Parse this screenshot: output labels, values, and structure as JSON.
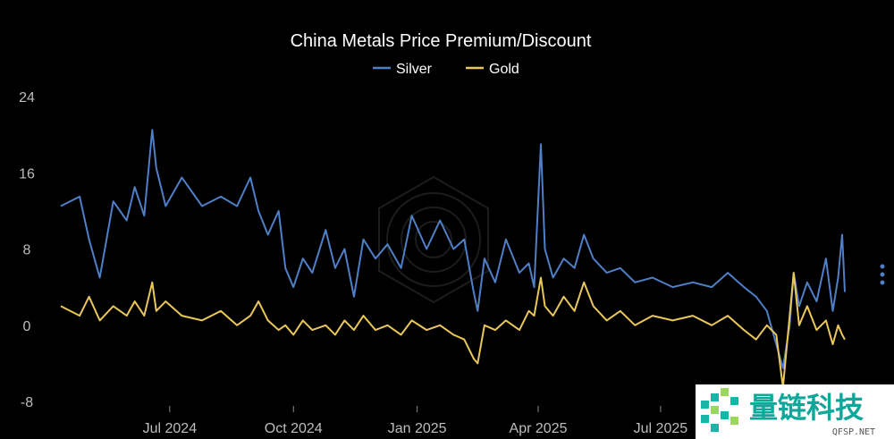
{
  "chart_data": {
    "type": "line",
    "title": "China Metals Price Premium/Discount",
    "ylim": [
      -8,
      24
    ],
    "yticks": [
      -8,
      0,
      8,
      16,
      24
    ],
    "grid": false,
    "legend_position": "top-center",
    "x_ticks": [
      {
        "date": "2024-07-01",
        "label": "Jul 2024"
      },
      {
        "date": "2024-10-01",
        "label": "Oct 2024"
      },
      {
        "date": "2025-01-01",
        "label": "Jan 2025"
      },
      {
        "date": "2025-04-01",
        "label": "Apr 2025"
      },
      {
        "date": "2025-07-01",
        "label": "Jul 2025"
      }
    ],
    "xlim": [
      "2024-04-11",
      "2025-11-15"
    ],
    "series": [
      {
        "name": "Silver",
        "color": "#4f7fc6",
        "points": [
          [
            "2024-04-11",
            12.5
          ],
          [
            "2024-04-25",
            13.5
          ],
          [
            "2024-05-02",
            9.0
          ],
          [
            "2024-05-10",
            5.0
          ],
          [
            "2024-05-20",
            13.0
          ],
          [
            "2024-05-30",
            11.0
          ],
          [
            "2024-06-05",
            14.5
          ],
          [
            "2024-06-12",
            11.5
          ],
          [
            "2024-06-18",
            20.5
          ],
          [
            "2024-06-21",
            16.5
          ],
          [
            "2024-06-28",
            12.5
          ],
          [
            "2024-07-10",
            15.5
          ],
          [
            "2024-07-25",
            12.5
          ],
          [
            "2024-08-08",
            13.5
          ],
          [
            "2024-08-20",
            12.5
          ],
          [
            "2024-08-30",
            15.5
          ],
          [
            "2024-09-05",
            12.0
          ],
          [
            "2024-09-12",
            9.5
          ],
          [
            "2024-09-20",
            12.0
          ],
          [
            "2024-09-25",
            6.0
          ],
          [
            "2024-10-01",
            4.0
          ],
          [
            "2024-10-08",
            7.0
          ],
          [
            "2024-10-15",
            5.5
          ],
          [
            "2024-10-25",
            10.0
          ],
          [
            "2024-11-01",
            6.0
          ],
          [
            "2024-11-08",
            8.0
          ],
          [
            "2024-11-15",
            3.0
          ],
          [
            "2024-11-22",
            9.0
          ],
          [
            "2024-12-01",
            7.0
          ],
          [
            "2024-12-10",
            8.5
          ],
          [
            "2024-12-20",
            6.0
          ],
          [
            "2024-12-28",
            11.5
          ],
          [
            "2025-01-08",
            8.0
          ],
          [
            "2025-01-18",
            11.0
          ],
          [
            "2025-01-28",
            8.0
          ],
          [
            "2025-02-05",
            9.0
          ],
          [
            "2025-02-12",
            3.5
          ],
          [
            "2025-02-15",
            1.5
          ],
          [
            "2025-02-20",
            7.0
          ],
          [
            "2025-02-28",
            4.5
          ],
          [
            "2025-03-08",
            9.0
          ],
          [
            "2025-03-18",
            5.5
          ],
          [
            "2025-03-25",
            6.5
          ],
          [
            "2025-03-29",
            4.0
          ],
          [
            "2025-04-03",
            19.0
          ],
          [
            "2025-04-06",
            8.0
          ],
          [
            "2025-04-12",
            5.0
          ],
          [
            "2025-04-20",
            7.0
          ],
          [
            "2025-04-28",
            6.0
          ],
          [
            "2025-05-05",
            9.5
          ],
          [
            "2025-05-12",
            7.0
          ],
          [
            "2025-05-22",
            5.5
          ],
          [
            "2025-06-01",
            6.0
          ],
          [
            "2025-06-12",
            4.5
          ],
          [
            "2025-06-25",
            5.0
          ],
          [
            "2025-07-10",
            4.0
          ],
          [
            "2025-07-25",
            4.5
          ],
          [
            "2025-08-08",
            4.0
          ],
          [
            "2025-08-20",
            5.5
          ],
          [
            "2025-09-01",
            4.0
          ],
          [
            "2025-09-10",
            3.0
          ],
          [
            "2025-09-18",
            1.5
          ],
          [
            "2025-09-25",
            -2.0
          ],
          [
            "2025-09-30",
            -4.5
          ],
          [
            "2025-10-05",
            0.0
          ],
          [
            "2025-10-08",
            5.5
          ],
          [
            "2025-10-12",
            2.0
          ],
          [
            "2025-10-18",
            4.5
          ],
          [
            "2025-10-25",
            2.5
          ],
          [
            "2025-11-01",
            7.0
          ],
          [
            "2025-11-06",
            1.5
          ],
          [
            "2025-11-10",
            5.0
          ],
          [
            "2025-11-13",
            9.5
          ],
          [
            "2025-11-15",
            3.5
          ]
        ]
      },
      {
        "name": "Gold",
        "color": "#e9c75a",
        "points": [
          [
            "2024-04-11",
            2.0
          ],
          [
            "2024-04-25",
            1.0
          ],
          [
            "2024-05-02",
            3.0
          ],
          [
            "2024-05-10",
            0.5
          ],
          [
            "2024-05-20",
            2.0
          ],
          [
            "2024-05-30",
            1.0
          ],
          [
            "2024-06-05",
            2.5
          ],
          [
            "2024-06-12",
            1.0
          ],
          [
            "2024-06-18",
            4.5
          ],
          [
            "2024-06-21",
            1.5
          ],
          [
            "2024-06-28",
            2.5
          ],
          [
            "2024-07-10",
            1.0
          ],
          [
            "2024-07-25",
            0.5
          ],
          [
            "2024-08-08",
            1.5
          ],
          [
            "2024-08-20",
            0.0
          ],
          [
            "2024-08-30",
            1.0
          ],
          [
            "2024-09-05",
            2.5
          ],
          [
            "2024-09-12",
            0.5
          ],
          [
            "2024-09-20",
            -0.5
          ],
          [
            "2024-09-25",
            0.0
          ],
          [
            "2024-10-01",
            -1.0
          ],
          [
            "2024-10-08",
            0.5
          ],
          [
            "2024-10-15",
            -0.5
          ],
          [
            "2024-10-25",
            0.0
          ],
          [
            "2024-11-01",
            -1.0
          ],
          [
            "2024-11-08",
            0.5
          ],
          [
            "2024-11-15",
            -0.5
          ],
          [
            "2024-11-22",
            1.0
          ],
          [
            "2024-12-01",
            -0.5
          ],
          [
            "2024-12-10",
            0.0
          ],
          [
            "2024-12-20",
            -1.0
          ],
          [
            "2024-12-28",
            0.5
          ],
          [
            "2025-01-08",
            -0.5
          ],
          [
            "2025-01-18",
            0.0
          ],
          [
            "2025-01-28",
            -1.0
          ],
          [
            "2025-02-05",
            -1.5
          ],
          [
            "2025-02-12",
            -3.5
          ],
          [
            "2025-02-15",
            -4.0
          ],
          [
            "2025-02-20",
            0.0
          ],
          [
            "2025-02-28",
            -0.5
          ],
          [
            "2025-03-08",
            0.5
          ],
          [
            "2025-03-18",
            -0.5
          ],
          [
            "2025-03-25",
            1.5
          ],
          [
            "2025-03-29",
            1.0
          ],
          [
            "2025-04-03",
            5.0
          ],
          [
            "2025-04-06",
            2.0
          ],
          [
            "2025-04-12",
            1.0
          ],
          [
            "2025-04-20",
            3.0
          ],
          [
            "2025-04-28",
            1.5
          ],
          [
            "2025-05-05",
            4.5
          ],
          [
            "2025-05-12",
            2.0
          ],
          [
            "2025-05-22",
            0.5
          ],
          [
            "2025-06-01",
            1.5
          ],
          [
            "2025-06-12",
            0.0
          ],
          [
            "2025-06-25",
            1.0
          ],
          [
            "2025-07-10",
            0.5
          ],
          [
            "2025-07-25",
            1.0
          ],
          [
            "2025-08-08",
            0.0
          ],
          [
            "2025-08-20",
            1.0
          ],
          [
            "2025-09-01",
            -0.5
          ],
          [
            "2025-09-10",
            -1.5
          ],
          [
            "2025-09-18",
            0.0
          ],
          [
            "2025-09-25",
            -1.0
          ],
          [
            "2025-09-30",
            -6.5
          ],
          [
            "2025-10-05",
            1.0
          ],
          [
            "2025-10-08",
            5.5
          ],
          [
            "2025-10-12",
            0.0
          ],
          [
            "2025-10-18",
            2.0
          ],
          [
            "2025-10-25",
            -0.5
          ],
          [
            "2025-11-01",
            0.5
          ],
          [
            "2025-11-06",
            -2.0
          ],
          [
            "2025-11-10",
            0.0
          ],
          [
            "2025-11-13",
            -1.0
          ],
          [
            "2025-11-15",
            -1.5
          ]
        ]
      }
    ]
  },
  "watermark": {
    "brand_text": "量链科技",
    "brand_url": "QFSP.NET"
  },
  "menu_icon": "more-vertical-icon"
}
